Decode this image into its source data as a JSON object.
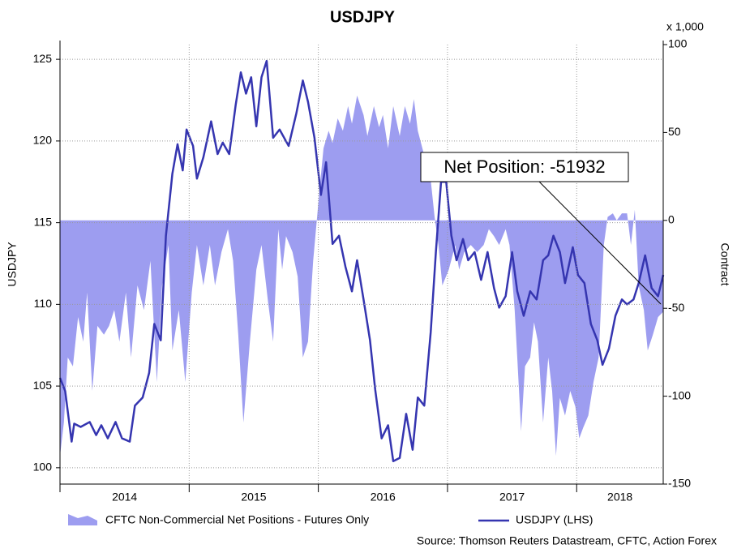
{
  "chart_data": {
    "type": "line",
    "title": "USDJPY",
    "y_label": "USDJPY",
    "y2_label": "Contract",
    "y2_unit": "x 1,000",
    "source": "Source: Thomson Reuters Datastream, CFTC, Action Forex",
    "annotation": "Net Position: -51932",
    "xlim": [
      2014,
      2018.67
    ],
    "xticks": [
      2014,
      2015,
      2016,
      2017,
      2018
    ],
    "ylim": [
      99,
      125.9
    ],
    "yticks": [
      100,
      105,
      110,
      115,
      120,
      125
    ],
    "y2lim": [
      -150,
      100
    ],
    "y2ticks": [
      100,
      50,
      0,
      -50,
      -100,
      -150
    ],
    "grid": true,
    "legend": "bottom",
    "series": [
      {
        "name": "CFTC Non-Commercial Net Positions - Futures Only",
        "kind": "area",
        "axis": "y2",
        "color": "#9d9df0",
        "x": [
          2014.0,
          2014.03,
          2014.06,
          2014.1,
          2014.14,
          2014.18,
          2014.21,
          2014.25,
          2014.29,
          2014.34,
          2014.38,
          2014.42,
          2014.46,
          2014.51,
          2014.55,
          2014.6,
          2014.65,
          2014.7,
          2014.75,
          2014.79,
          2014.84,
          2014.87,
          2014.92,
          2014.97,
          2015.02,
          2015.06,
          2015.11,
          2015.16,
          2015.2,
          2015.25,
          2015.3,
          2015.34,
          2015.38,
          2015.42,
          2015.47,
          2015.52,
          2015.56,
          2015.61,
          2015.65,
          2015.69,
          2015.72,
          2015.75,
          2015.8,
          2015.84,
          2015.88,
          2015.92,
          2015.96,
          2016.01,
          2016.04,
          2016.08,
          2016.11,
          2016.15,
          2016.19,
          2016.23,
          2016.26,
          2016.3,
          2016.35,
          2016.38,
          2016.43,
          2016.47,
          2016.5,
          2016.54,
          2016.58,
          2016.63,
          2016.67,
          2016.71,
          2016.74,
          2016.77,
          2016.82,
          2016.87,
          2016.9,
          2016.93,
          2016.96,
          2017.01,
          2017.06,
          2017.09,
          2017.13,
          2017.18,
          2017.23,
          2017.28,
          2017.32,
          2017.36,
          2017.4,
          2017.45,
          2017.48,
          2017.52,
          2017.54,
          2017.57,
          2017.6,
          2017.64,
          2017.67,
          2017.7,
          2017.74,
          2017.78,
          2017.81,
          2017.84,
          2017.87,
          2017.91,
          2017.95,
          2017.99,
          2018.02,
          2018.05,
          2018.09,
          2018.13,
          2018.17,
          2018.21,
          2018.24,
          2018.28,
          2018.31,
          2018.35,
          2018.39,
          2018.42,
          2018.45,
          2018.48,
          2018.52,
          2018.55,
          2018.59,
          2018.63,
          2018.67
        ],
        "values": [
          -134,
          -115,
          -78,
          -83,
          -55,
          -69,
          -41,
          -97,
          -60,
          -65,
          -60,
          -51,
          -69,
          -41,
          -78,
          -37,
          -51,
          -23,
          -92,
          -37,
          -14,
          -74,
          -51,
          -92,
          -41,
          -14,
          -37,
          -14,
          -37,
          -18,
          -5,
          -23,
          -65,
          -115,
          -69,
          -28,
          -14,
          -46,
          -69,
          -5,
          -28,
          -9,
          -18,
          -32,
          -78,
          -69,
          -23,
          18,
          41,
          51,
          44,
          58,
          51,
          65,
          55,
          71,
          60,
          48,
          65,
          53,
          60,
          41,
          65,
          48,
          65,
          55,
          69,
          51,
          37,
          23,
          2,
          -14,
          -37,
          -28,
          -14,
          -28,
          -18,
          -14,
          -18,
          -14,
          -5,
          -9,
          -14,
          -5,
          -14,
          -51,
          -78,
          -120,
          -83,
          -78,
          -58,
          -69,
          -115,
          -78,
          -97,
          -134,
          -101,
          -111,
          -97,
          -106,
          -124,
          -118,
          -111,
          -92,
          -78,
          -14,
          2,
          4,
          0,
          4,
          4,
          -14,
          6,
          -37,
          -51,
          -74,
          -65,
          -55,
          -52
        ]
      },
      {
        "name": "USDJPY (LHS)",
        "kind": "line",
        "axis": "y",
        "color": "#3535b0",
        "x": [
          2014.0,
          2014.04,
          2014.09,
          2014.11,
          2014.16,
          2014.23,
          2014.28,
          2014.32,
          2014.37,
          2014.43,
          2014.48,
          2014.54,
          2014.58,
          2014.64,
          2014.69,
          2014.73,
          2014.78,
          2014.82,
          2014.87,
          2014.91,
          2014.95,
          2014.98,
          2015.03,
          2015.06,
          2015.11,
          2015.17,
          2015.22,
          2015.26,
          2015.31,
          2015.36,
          2015.4,
          2015.44,
          2015.48,
          2015.52,
          2015.56,
          2015.6,
          2015.65,
          2015.7,
          2015.77,
          2015.83,
          2015.88,
          2015.92,
          2015.97,
          2016.02,
          2016.06,
          2016.11,
          2016.16,
          2016.21,
          2016.26,
          2016.3,
          2016.35,
          2016.4,
          2016.44,
          2016.49,
          2016.54,
          2016.58,
          2016.63,
          2016.68,
          2016.73,
          2016.77,
          2016.82,
          2016.87,
          2016.91,
          2016.95,
          2016.99,
          2017.03,
          2017.07,
          2017.12,
          2017.16,
          2017.21,
          2017.26,
          2017.31,
          2017.36,
          2017.4,
          2017.45,
          2017.5,
          2017.54,
          2017.59,
          2017.64,
          2017.69,
          2017.74,
          2017.78,
          2017.82,
          2017.87,
          2017.91,
          2017.97,
          2018.01,
          2018.06,
          2018.11,
          2018.16,
          2018.2,
          2018.25,
          2018.3,
          2018.35,
          2018.39,
          2018.44,
          2018.48,
          2018.53,
          2018.58,
          2018.63,
          2018.67
        ],
        "values": [
          105.5,
          104.7,
          101.6,
          102.7,
          102.5,
          102.8,
          102.0,
          102.6,
          101.8,
          102.8,
          101.8,
          101.6,
          103.8,
          104.3,
          105.8,
          108.8,
          107.8,
          114.2,
          118.0,
          119.8,
          118.2,
          120.7,
          119.7,
          117.7,
          119.0,
          121.2,
          119.2,
          119.9,
          119.2,
          122.2,
          124.2,
          122.9,
          123.9,
          120.9,
          123.9,
          124.9,
          120.2,
          120.7,
          119.7,
          121.7,
          123.7,
          122.4,
          120.2,
          116.7,
          118.7,
          113.7,
          114.2,
          112.3,
          110.8,
          112.7,
          110.3,
          107.8,
          104.8,
          101.8,
          102.6,
          100.4,
          100.6,
          103.3,
          101.1,
          104.3,
          103.8,
          108.3,
          113.2,
          117.5,
          117.5,
          114.2,
          112.7,
          114.0,
          112.7,
          113.2,
          111.5,
          113.2,
          111.0,
          109.8,
          110.5,
          113.2,
          110.8,
          109.3,
          110.8,
          110.3,
          112.7,
          113.0,
          114.2,
          113.2,
          111.3,
          113.5,
          111.8,
          111.3,
          108.8,
          107.8,
          106.3,
          107.3,
          109.3,
          110.3,
          110.0,
          110.3,
          111.3,
          113.0,
          111.0,
          110.5,
          111.8
        ]
      }
    ]
  }
}
